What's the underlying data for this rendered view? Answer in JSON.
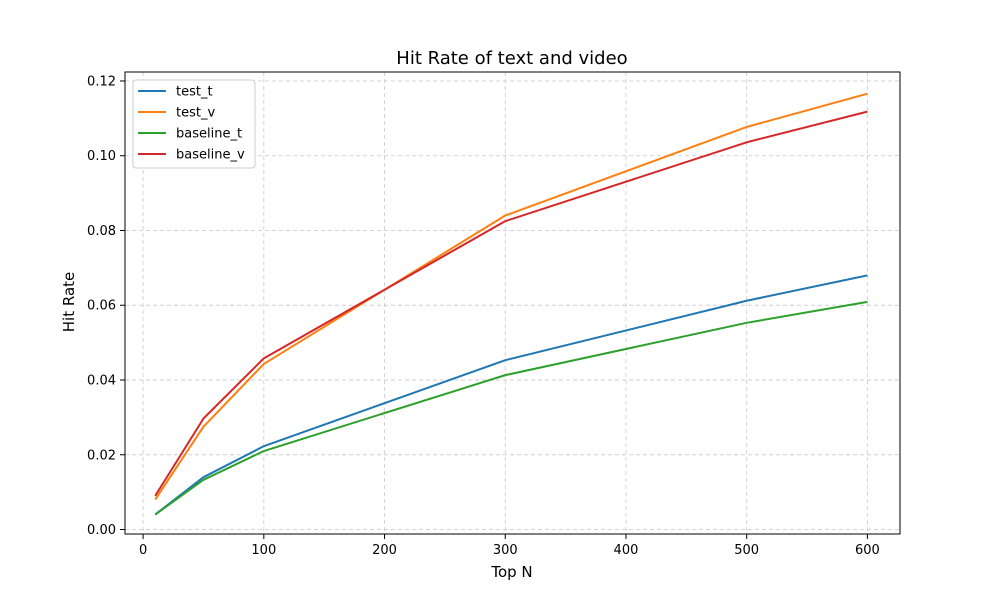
{
  "chart_data": {
    "type": "line",
    "title": "Hit Rate of text and video",
    "xlabel": "Top N",
    "ylabel": "Hit Rate",
    "x": [
      10,
      50,
      100,
      300,
      500,
      600
    ],
    "xlim": [
      -15,
      627
    ],
    "ylim": [
      -0.0012,
      0.1224
    ],
    "xticks": [
      0,
      100,
      200,
      300,
      400,
      500,
      600
    ],
    "xtick_labels": [
      "0",
      "100",
      "200",
      "300",
      "400",
      "500",
      "600"
    ],
    "yticks": [
      0.0,
      0.02,
      0.04,
      0.06,
      0.08,
      0.1,
      0.12
    ],
    "ytick_labels": [
      "0.00",
      "0.02",
      "0.04",
      "0.06",
      "0.08",
      "0.10",
      "0.12"
    ],
    "grid": true,
    "legend_position": "top-left",
    "series": [
      {
        "name": "test_t",
        "color": "#1f77b4",
        "values": [
          0.004,
          0.014,
          0.0223,
          0.0453,
          0.0612,
          0.068
        ]
      },
      {
        "name": "test_v",
        "color": "#ff7f0e",
        "values": [
          0.008,
          0.0275,
          0.0443,
          0.084,
          0.1077,
          0.1166
        ]
      },
      {
        "name": "baseline_t",
        "color": "#2ca02c",
        "values": [
          0.004,
          0.0133,
          0.021,
          0.0413,
          0.0553,
          0.0609
        ]
      },
      {
        "name": "baseline_v",
        "color": "#d62728",
        "values": [
          0.009,
          0.0297,
          0.0458,
          0.0825,
          0.1036,
          0.1118
        ]
      }
    ]
  }
}
